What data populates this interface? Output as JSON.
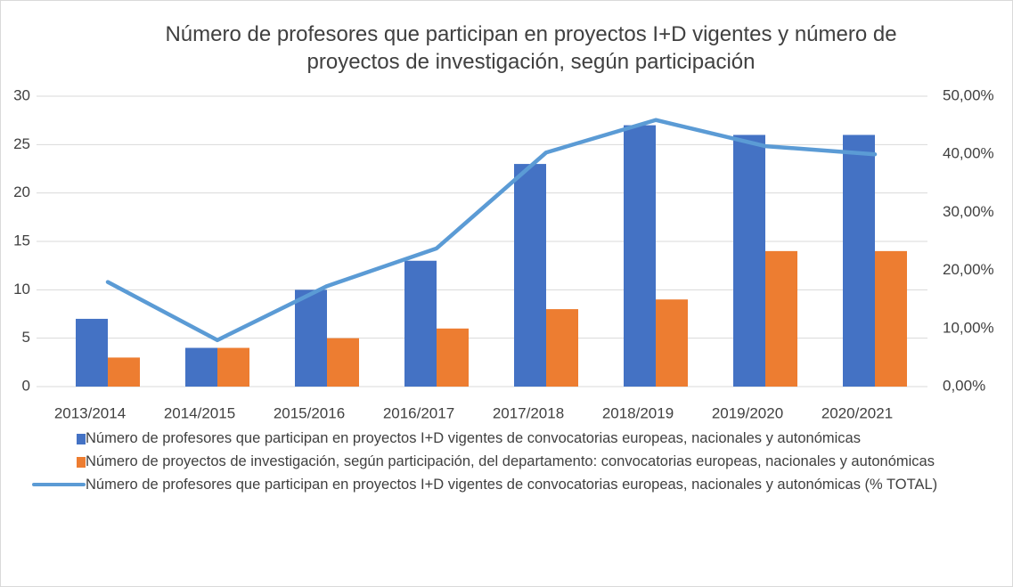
{
  "chart_data": {
    "type": "bar-line",
    "title": "Número de profesores que participan en proyectos I+D vigentes  y número de proyectos de investigación, según participación",
    "categories": [
      "2013/2014",
      "2014/2015",
      "2015/2016",
      "2016/2017",
      "2017/2018",
      "2018/2019",
      "2019/2020",
      "2020/2021"
    ],
    "series": [
      {
        "name": "Número de profesores que participan en proyectos I+D vigentes de convocatorias europeas, nacionales y autonómicas",
        "type": "bar",
        "color": "#4472c4",
        "values": [
          7,
          4,
          10,
          13,
          23,
          27,
          26,
          26
        ]
      },
      {
        "name": "Número de proyectos de investigación, según participación,  del departamento: convocatorias europeas, nacionales y autonómicas",
        "type": "bar",
        "color": "#ed7d31",
        "values": [
          3,
          4,
          5,
          6,
          8,
          9,
          14,
          14
        ]
      },
      {
        "name": "Número de profesores que participan en proyectos I+D vigentes de convocatorias europeas, nacionales y autonómicas (% TOTAL)",
        "type": "line",
        "axis": "y2",
        "color": "#5b9bd5",
        "values": [
          18,
          8,
          17.3,
          23.8,
          40.3,
          45.9,
          41.4,
          40
        ]
      }
    ],
    "ylim": [
      0,
      30
    ],
    "yticks": [
      0,
      5,
      10,
      15,
      20,
      25,
      30
    ],
    "y2lim": [
      0,
      50
    ],
    "y2ticks": [
      {
        "value": 0,
        "label": "0,00%"
      },
      {
        "value": 10,
        "label": "10,00%"
      },
      {
        "value": 20,
        "label": "20,00%"
      },
      {
        "value": 30,
        "label": "30,00%"
      },
      {
        "value": 40,
        "label": "40,00%"
      },
      {
        "value": 50,
        "label": "50,00%"
      }
    ],
    "grid": true,
    "legend": "bottom"
  }
}
